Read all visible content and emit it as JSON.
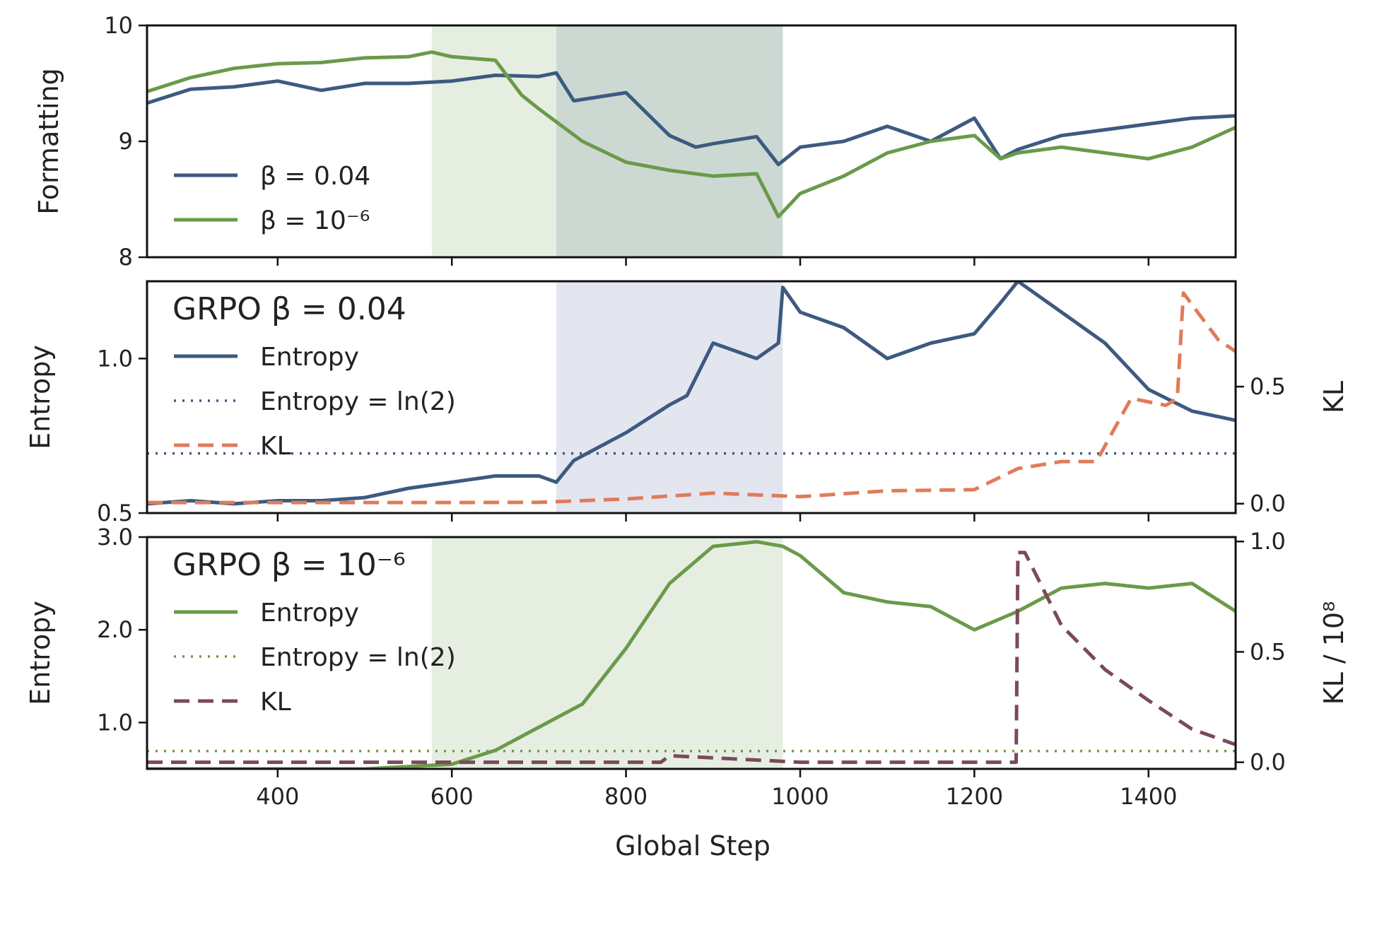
{
  "chart_data": {
    "type": "line",
    "xlabel": "Global Step",
    "xlim": [
      250,
      1500
    ],
    "xticks": [
      400,
      600,
      800,
      1000,
      1200,
      1400
    ],
    "colors": {
      "blue": "#3d5a80",
      "green": "#6a9a4a",
      "orange": "#e07b5a",
      "plum": "#7b4a5a",
      "shade_green": "#e6eee2",
      "shade_blue": "#e3e6ef",
      "shade_dark": "#ccd9d3"
    },
    "panels": [
      {
        "id": "formatting",
        "ylabel": "Formatting",
        "ylim": [
          8,
          10
        ],
        "yticks": [
          8,
          9,
          10
        ],
        "shaded_regions": [
          {
            "x0": 577,
            "x1": 720,
            "color": "shade_green"
          },
          {
            "x0": 720,
            "x1": 980,
            "color": "shade_dark"
          }
        ],
        "legend": {
          "position": "lower-left",
          "entries": [
            {
              "label": "β = 0.04",
              "series": 0
            },
            {
              "label": "β = 10⁻⁶",
              "series": 1
            }
          ]
        },
        "series": [
          {
            "name": "β = 0.04",
            "color": "blue",
            "style": "solid",
            "x": [
              250,
              300,
              350,
              400,
              450,
              500,
              550,
              600,
              650,
              700,
              720,
              740,
              800,
              850,
              880,
              900,
              950,
              975,
              1000,
              1050,
              1100,
              1150,
              1200,
              1230,
              1250,
              1300,
              1350,
              1400,
              1450,
              1500
            ],
            "y": [
              9.33,
              9.45,
              9.47,
              9.52,
              9.44,
              9.5,
              9.5,
              9.52,
              9.57,
              9.56,
              9.59,
              9.35,
              9.42,
              9.05,
              8.95,
              8.98,
              9.04,
              8.8,
              8.95,
              9.0,
              9.13,
              9.0,
              9.2,
              8.85,
              8.93,
              9.05,
              9.1,
              9.15,
              9.2,
              9.22
            ]
          },
          {
            "name": "β = 10⁻⁶",
            "color": "green",
            "style": "solid",
            "x": [
              250,
              300,
              350,
              400,
              450,
              500,
              550,
              577,
              600,
              650,
              680,
              700,
              750,
              800,
              850,
              900,
              950,
              975,
              1000,
              1050,
              1100,
              1150,
              1200,
              1230,
              1250,
              1300,
              1350,
              1400,
              1450,
              1500
            ],
            "y": [
              9.43,
              9.55,
              9.63,
              9.67,
              9.68,
              9.72,
              9.73,
              9.77,
              9.73,
              9.7,
              9.4,
              9.28,
              9.0,
              8.82,
              8.75,
              8.7,
              8.72,
              8.35,
              8.55,
              8.7,
              8.9,
              9.0,
              9.05,
              8.85,
              8.9,
              8.95,
              8.9,
              8.85,
              8.95,
              9.12
            ]
          }
        ]
      },
      {
        "id": "entropy-004",
        "title": "GRPO β = 0.04",
        "ylabel": "Entropy",
        "ylim": [
          0.5,
          1.25
        ],
        "yticks": [
          0.5,
          1.0
        ],
        "ylabel_right": "KL",
        "ylim_right": [
          -0.04,
          0.95
        ],
        "yticks_right": [
          0.0,
          0.5
        ],
        "shaded_regions": [
          {
            "x0": 720,
            "x1": 980,
            "color": "shade_blue"
          }
        ],
        "legend": {
          "position": "upper-left",
          "entries": [
            {
              "label": "Entropy",
              "series": 0
            },
            {
              "label": "Entropy = ln(2)",
              "series": 1
            },
            {
              "label": "KL",
              "series": 2
            }
          ]
        },
        "series": [
          {
            "name": "Entropy",
            "color": "blue",
            "style": "solid",
            "axis": "left",
            "x": [
              250,
              300,
              350,
              400,
              450,
              500,
              550,
              600,
              650,
              700,
              720,
              740,
              760,
              800,
              850,
              870,
              900,
              950,
              975,
              980,
              1000,
              1050,
              1100,
              1150,
              1200,
              1230,
              1250,
              1300,
              1350,
              1400,
              1450,
              1500
            ],
            "y": [
              0.53,
              0.54,
              0.53,
              0.54,
              0.54,
              0.55,
              0.58,
              0.6,
              0.62,
              0.62,
              0.6,
              0.67,
              0.7,
              0.76,
              0.85,
              0.88,
              1.05,
              1.0,
              1.05,
              1.23,
              1.15,
              1.1,
              1.0,
              1.05,
              1.08,
              1.18,
              1.25,
              1.15,
              1.05,
              0.9,
              0.83,
              0.8
            ]
          },
          {
            "name": "Entropy = ln(2)",
            "color": "blue",
            "style": "dotted",
            "axis": "left",
            "x": [
              250,
              1500
            ],
            "y": [
              0.693,
              0.693
            ]
          },
          {
            "name": "KL",
            "color": "orange",
            "style": "dashed",
            "axis": "right",
            "x": [
              250,
              400,
              600,
              700,
              800,
              900,
              1000,
              1100,
              1200,
              1250,
              1300,
              1340,
              1380,
              1420,
              1433,
              1440,
              1460,
              1480,
              1500
            ],
            "y": [
              0.005,
              0.005,
              0.005,
              0.006,
              0.02,
              0.045,
              0.03,
              0.055,
              0.06,
              0.15,
              0.18,
              0.18,
              0.45,
              0.42,
              0.45,
              0.9,
              0.8,
              0.7,
              0.65
            ]
          }
        ]
      },
      {
        "id": "entropy-1e6",
        "title": "GRPO β = 10⁻⁶",
        "ylabel": "Entropy",
        "ylim": [
          0.5,
          3.0
        ],
        "yticks": [
          1.0,
          2.0,
          3.0
        ],
        "yticklabels": [
          "1.0",
          "2.0",
          "3.0"
        ],
        "ylabel_right": "KL / 10⁸",
        "ylim_right": [
          -0.03,
          1.02
        ],
        "yticks_right": [
          0.0,
          0.5,
          1.0
        ],
        "shaded_regions": [
          {
            "x0": 577,
            "x1": 980,
            "color": "shade_green"
          }
        ],
        "legend": {
          "position": "upper-left",
          "entries": [
            {
              "label": "Entropy",
              "series": 0
            },
            {
              "label": "Entropy = ln(2)",
              "series": 1
            },
            {
              "label": "KL",
              "series": 2
            }
          ]
        },
        "series": [
          {
            "name": "Entropy",
            "color": "green",
            "style": "solid",
            "axis": "left",
            "x": [
              250,
              400,
              500,
              600,
              650,
              700,
              750,
              800,
              850,
              900,
              950,
              980,
              1000,
              1050,
              1100,
              1150,
              1200,
              1250,
              1300,
              1350,
              1400,
              1450,
              1500
            ],
            "y": [
              0.5,
              0.5,
              0.5,
              0.55,
              0.7,
              0.95,
              1.2,
              1.8,
              2.5,
              2.9,
              2.95,
              2.9,
              2.8,
              2.4,
              2.3,
              2.25,
              2.0,
              2.2,
              2.45,
              2.5,
              2.45,
              2.5,
              2.2
            ]
          },
          {
            "name": "Entropy = ln(2)",
            "color": "green",
            "style": "dotted",
            "axis": "left",
            "x": [
              250,
              1500
            ],
            "y": [
              0.693,
              0.693
            ]
          },
          {
            "name": "KL",
            "color": "plum",
            "style": "dashed",
            "axis": "right",
            "x": [
              250,
              400,
              600,
              840,
              850,
              900,
              950,
              1000,
              1100,
              1248,
              1250,
              1258,
              1300,
              1350,
              1400,
              1450,
              1500
            ],
            "y": [
              0.0,
              0.0,
              0.0,
              0.0,
              0.03,
              0.02,
              0.01,
              0.0,
              0.0,
              0.0,
              0.95,
              0.95,
              0.62,
              0.42,
              0.28,
              0.15,
              0.08
            ]
          }
        ]
      }
    ]
  }
}
